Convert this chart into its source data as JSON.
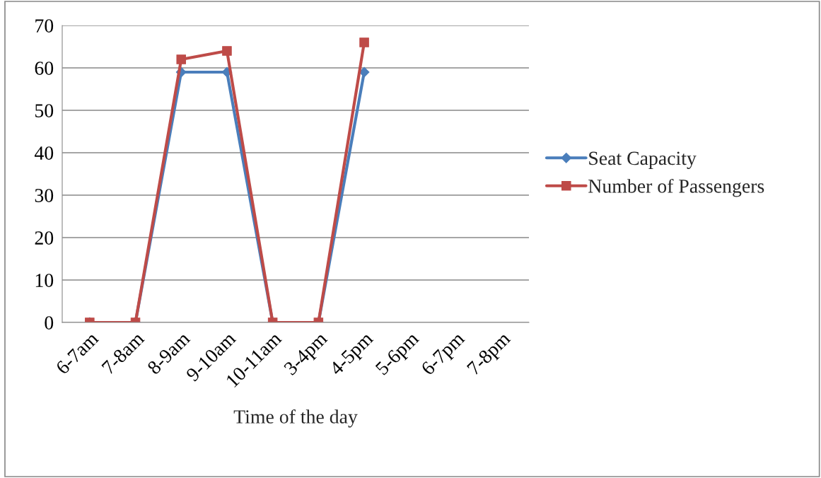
{
  "chart_data": {
    "type": "line",
    "xlabel": "Time of the day",
    "categories": [
      "6-7am",
      "7-8am",
      "8-9am",
      "9-10am",
      "10-11am",
      "3-4pm",
      "4-5pm",
      "5-6pm",
      "6-7pm",
      "7-8pm"
    ],
    "series": [
      {
        "name": "Seat Capacity",
        "color": "#4a7ebb",
        "marker": "diamond",
        "values": [
          0,
          0,
          59,
          59,
          0,
          0,
          59,
          null,
          null,
          null
        ]
      },
      {
        "name": "Number of Passengers",
        "color": "#be4b48",
        "marker": "square",
        "values": [
          0,
          0,
          62,
          64,
          0,
          0,
          66,
          null,
          null,
          null
        ]
      }
    ],
    "ylim": [
      0,
      70
    ],
    "yticks": [
      0,
      10,
      20,
      30,
      40,
      50,
      60,
      70
    ],
    "grid": "y",
    "legend": "right",
    "line_style": "solid"
  }
}
